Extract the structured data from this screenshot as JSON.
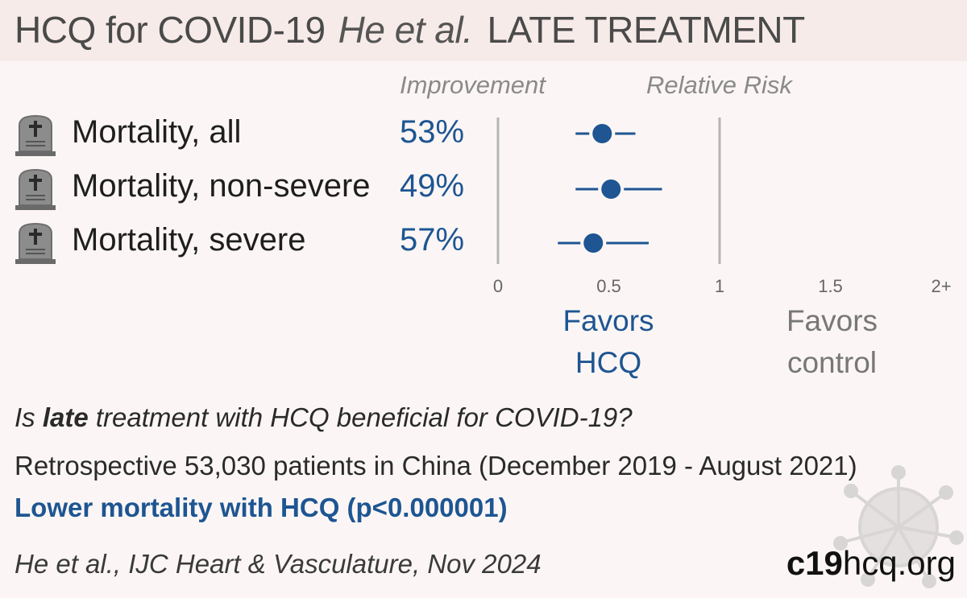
{
  "header": {
    "title_main": "HCQ for COVID-19",
    "title_author": "He et al.",
    "title_stage": "LATE TREATMENT"
  },
  "columns": {
    "improvement": "Improvement",
    "relative_risk": "Relative Risk"
  },
  "rows": [
    {
      "label": "Mortality, all",
      "improvement": "53%",
      "icon": "tombstone-icon"
    },
    {
      "label": "Mortality, non-severe",
      "improvement": "49%",
      "icon": "tombstone-icon"
    },
    {
      "label": "Mortality, severe",
      "improvement": "57%",
      "icon": "tombstone-icon"
    }
  ],
  "chart_data": {
    "type": "forest",
    "xlim": [
      0,
      2
    ],
    "reference_lines": [
      0,
      1
    ],
    "x_ticks": [
      {
        "value": 0,
        "label": "0"
      },
      {
        "value": 0.5,
        "label": "0.5"
      },
      {
        "value": 1,
        "label": "1"
      },
      {
        "value": 1.5,
        "label": "1.5"
      },
      {
        "value": 2,
        "label": "2+"
      }
    ],
    "categories": [
      "Mortality, all",
      "Mortality, non-severe",
      "Mortality, severe"
    ],
    "series": [
      {
        "points": [
          {
            "rr": 0.47,
            "ci": [
              0.35,
              0.62
            ]
          },
          {
            "rr": 0.51,
            "ci": [
              0.35,
              0.74
            ]
          },
          {
            "rr": 0.43,
            "ci": [
              0.27,
              0.68
            ]
          }
        ]
      }
    ],
    "favors_left": [
      "Favors",
      "HCQ"
    ],
    "favors_right": [
      "Favors",
      "control"
    ],
    "colors": {
      "marker": "#1e5592",
      "favors_left": "#1e5592",
      "favors_right": "#777777",
      "axis": "#b5b5b5"
    }
  },
  "summary": {
    "question_pre": "Is ",
    "question_bold": "late",
    "question_post": " treatment with HCQ beneficial for COVID-19?",
    "description": "Retrospective 53,030 patients in China (December 2019 - August 2021)",
    "result": "Lower mortality with HCQ (p<0.000001)"
  },
  "footer": {
    "citation": "He et al., IJC Heart & Vasculature, Nov 2024",
    "site_bold": "c19",
    "site_rest": "hcq.org"
  }
}
